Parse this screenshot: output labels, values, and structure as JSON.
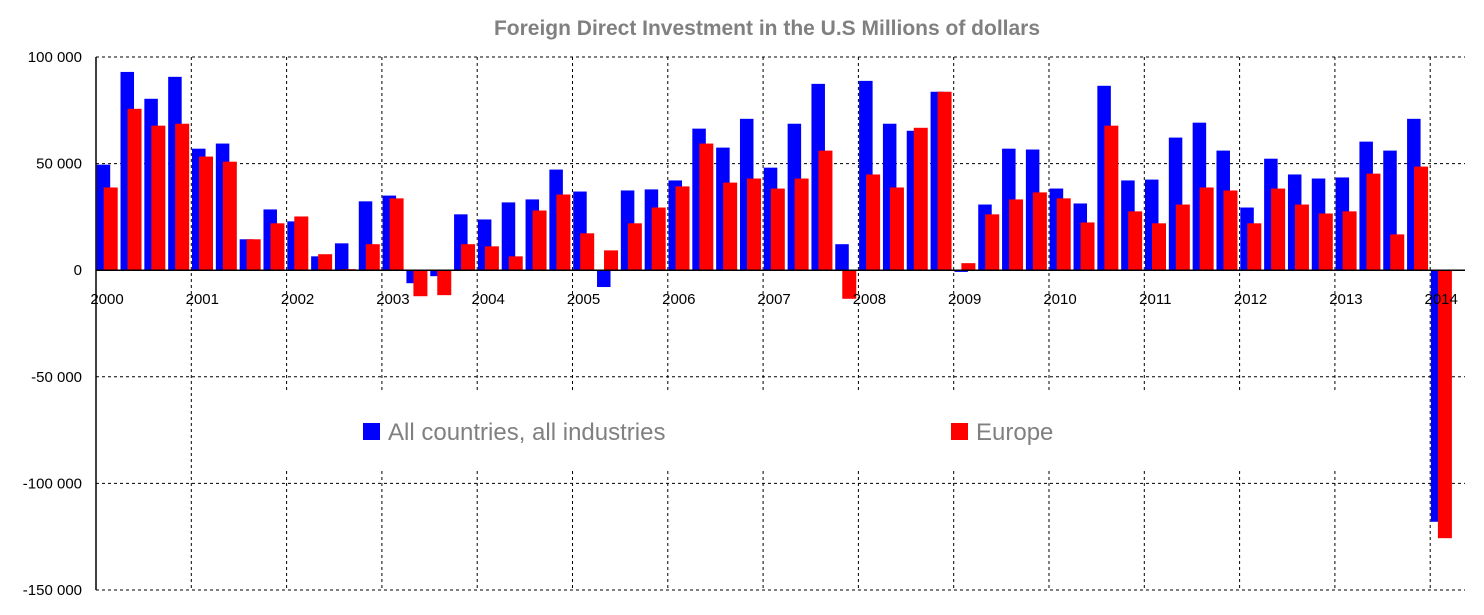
{
  "chart_data": {
    "type": "bar",
    "title": "Foreign Direct Investment in the U.S Millions of dollars",
    "xlabel": "",
    "ylabel": "",
    "ylim": [
      -150000,
      100000
    ],
    "yticks": [
      100000,
      50000,
      0,
      -50000,
      -100000,
      -150000
    ],
    "ytick_labels": [
      "100 000",
      "50 000",
      "0",
      "-50 000",
      "-100 000",
      "-150 000"
    ],
    "xtick_labels": [
      "2000",
      "2001",
      "2002",
      "2003",
      "2004",
      "2005",
      "2006",
      "2007",
      "2008",
      "2009",
      "2010",
      "2011",
      "2012",
      "2013",
      "2014"
    ],
    "grid": true,
    "legend_position": "middle",
    "categories": [
      "2000Q1",
      "2000Q2",
      "2000Q3",
      "2000Q4",
      "2001Q1",
      "2001Q2",
      "2001Q3",
      "2001Q4",
      "2002Q1",
      "2002Q2",
      "2002Q3",
      "2002Q4",
      "2003Q1",
      "2003Q2",
      "2003Q3",
      "2003Q4",
      "2004Q1",
      "2004Q2",
      "2004Q3",
      "2004Q4",
      "2005Q1",
      "2005Q2",
      "2005Q3",
      "2005Q4",
      "2006Q1",
      "2006Q2",
      "2006Q3",
      "2006Q4",
      "2007Q1",
      "2007Q2",
      "2007Q3",
      "2007Q4",
      "2008Q1",
      "2008Q2",
      "2008Q3",
      "2008Q4",
      "2009Q1",
      "2009Q2",
      "2009Q3",
      "2009Q4",
      "2010Q1",
      "2010Q2",
      "2010Q3",
      "2010Q4",
      "2011Q1",
      "2011Q2",
      "2011Q3",
      "2011Q4",
      "2012Q1",
      "2012Q2",
      "2012Q3",
      "2012Q4",
      "2013Q1",
      "2013Q2",
      "2013Q3",
      "2013Q4",
      "2014Q1"
    ],
    "series": [
      {
        "name": "All countries, all industries",
        "color": "#0000ff",
        "values": [
          49500,
          93000,
          80400,
          90700,
          57000,
          59400,
          14500,
          28500,
          22900,
          6500,
          12600,
          32300,
          35000,
          -6100,
          -2800,
          26200,
          23800,
          31800,
          33200,
          47200,
          36900,
          -7900,
          37400,
          37900,
          42100,
          66400,
          57500,
          71000,
          48100,
          68700,
          87400,
          12200,
          88800,
          68700,
          65400,
          83700,
          -800,
          30800,
          57000,
          56600,
          38300,
          31300,
          86500,
          42100,
          42500,
          62200,
          69200,
          56100,
          29400,
          52300,
          44900,
          43000,
          43500,
          60300,
          56100,
          71000,
          -118000
        ]
      },
      {
        "name": "Europe",
        "color": "#ff0000",
        "values": [
          38800,
          75700,
          67800,
          68700,
          53300,
          50900,
          14500,
          22000,
          25200,
          7500,
          500,
          12200,
          33700,
          -12200,
          -11700,
          12200,
          11200,
          6500,
          28000,
          35500,
          17300,
          9300,
          22000,
          29400,
          39300,
          59400,
          41100,
          43000,
          38300,
          43000,
          56100,
          -13400,
          44900,
          38800,
          66800,
          83700,
          3300,
          26200,
          33200,
          36500,
          33700,
          22400,
          67800,
          27600,
          22000,
          30800,
          38800,
          37400,
          22000,
          38300,
          30800,
          26600,
          27600,
          45300,
          16800,
          48600,
          -125700
        ]
      }
    ]
  }
}
